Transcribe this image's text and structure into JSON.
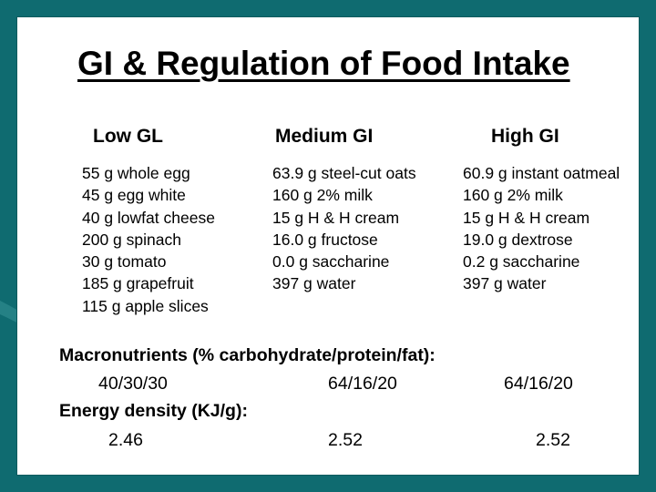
{
  "slide": {
    "title": "GI & Regulation of Food Intake",
    "columns": [
      {
        "heading": "Low GL",
        "items": [
          "55 g  whole egg",
          "45 g egg white",
          "40 g lowfat cheese",
          "200 g spinach",
          "30 g tomato",
          "185 g grapefruit",
          "115 g apple slices"
        ]
      },
      {
        "heading": "Medium GI",
        "items": [
          "63.9 g steel-cut oats",
          "160 g 2% milk",
          "15 g H & H cream",
          "16.0 g fructose",
          "0.0 g saccharine",
          "397 g water"
        ]
      },
      {
        "heading": "High GI",
        "items": [
          "60.9 g instant oatmeal",
          "160 g 2% milk",
          "15 g H & H cream",
          "19.0 g dextrose",
          "0.2 g saccharine",
          "397 g water"
        ]
      }
    ],
    "macronutrients": {
      "label": "Macronutrients (% carbohydrate/protein/fat):",
      "values": [
        "40/30/30",
        "64/16/20",
        "64/16/20"
      ]
    },
    "energy_density": {
      "label": "Energy density (KJ/g):",
      "values": [
        "2.46",
        "2.52",
        "2.52"
      ]
    }
  },
  "colors": {
    "background": "#0f6b70",
    "slide": "#ffffff",
    "text": "#000000"
  }
}
